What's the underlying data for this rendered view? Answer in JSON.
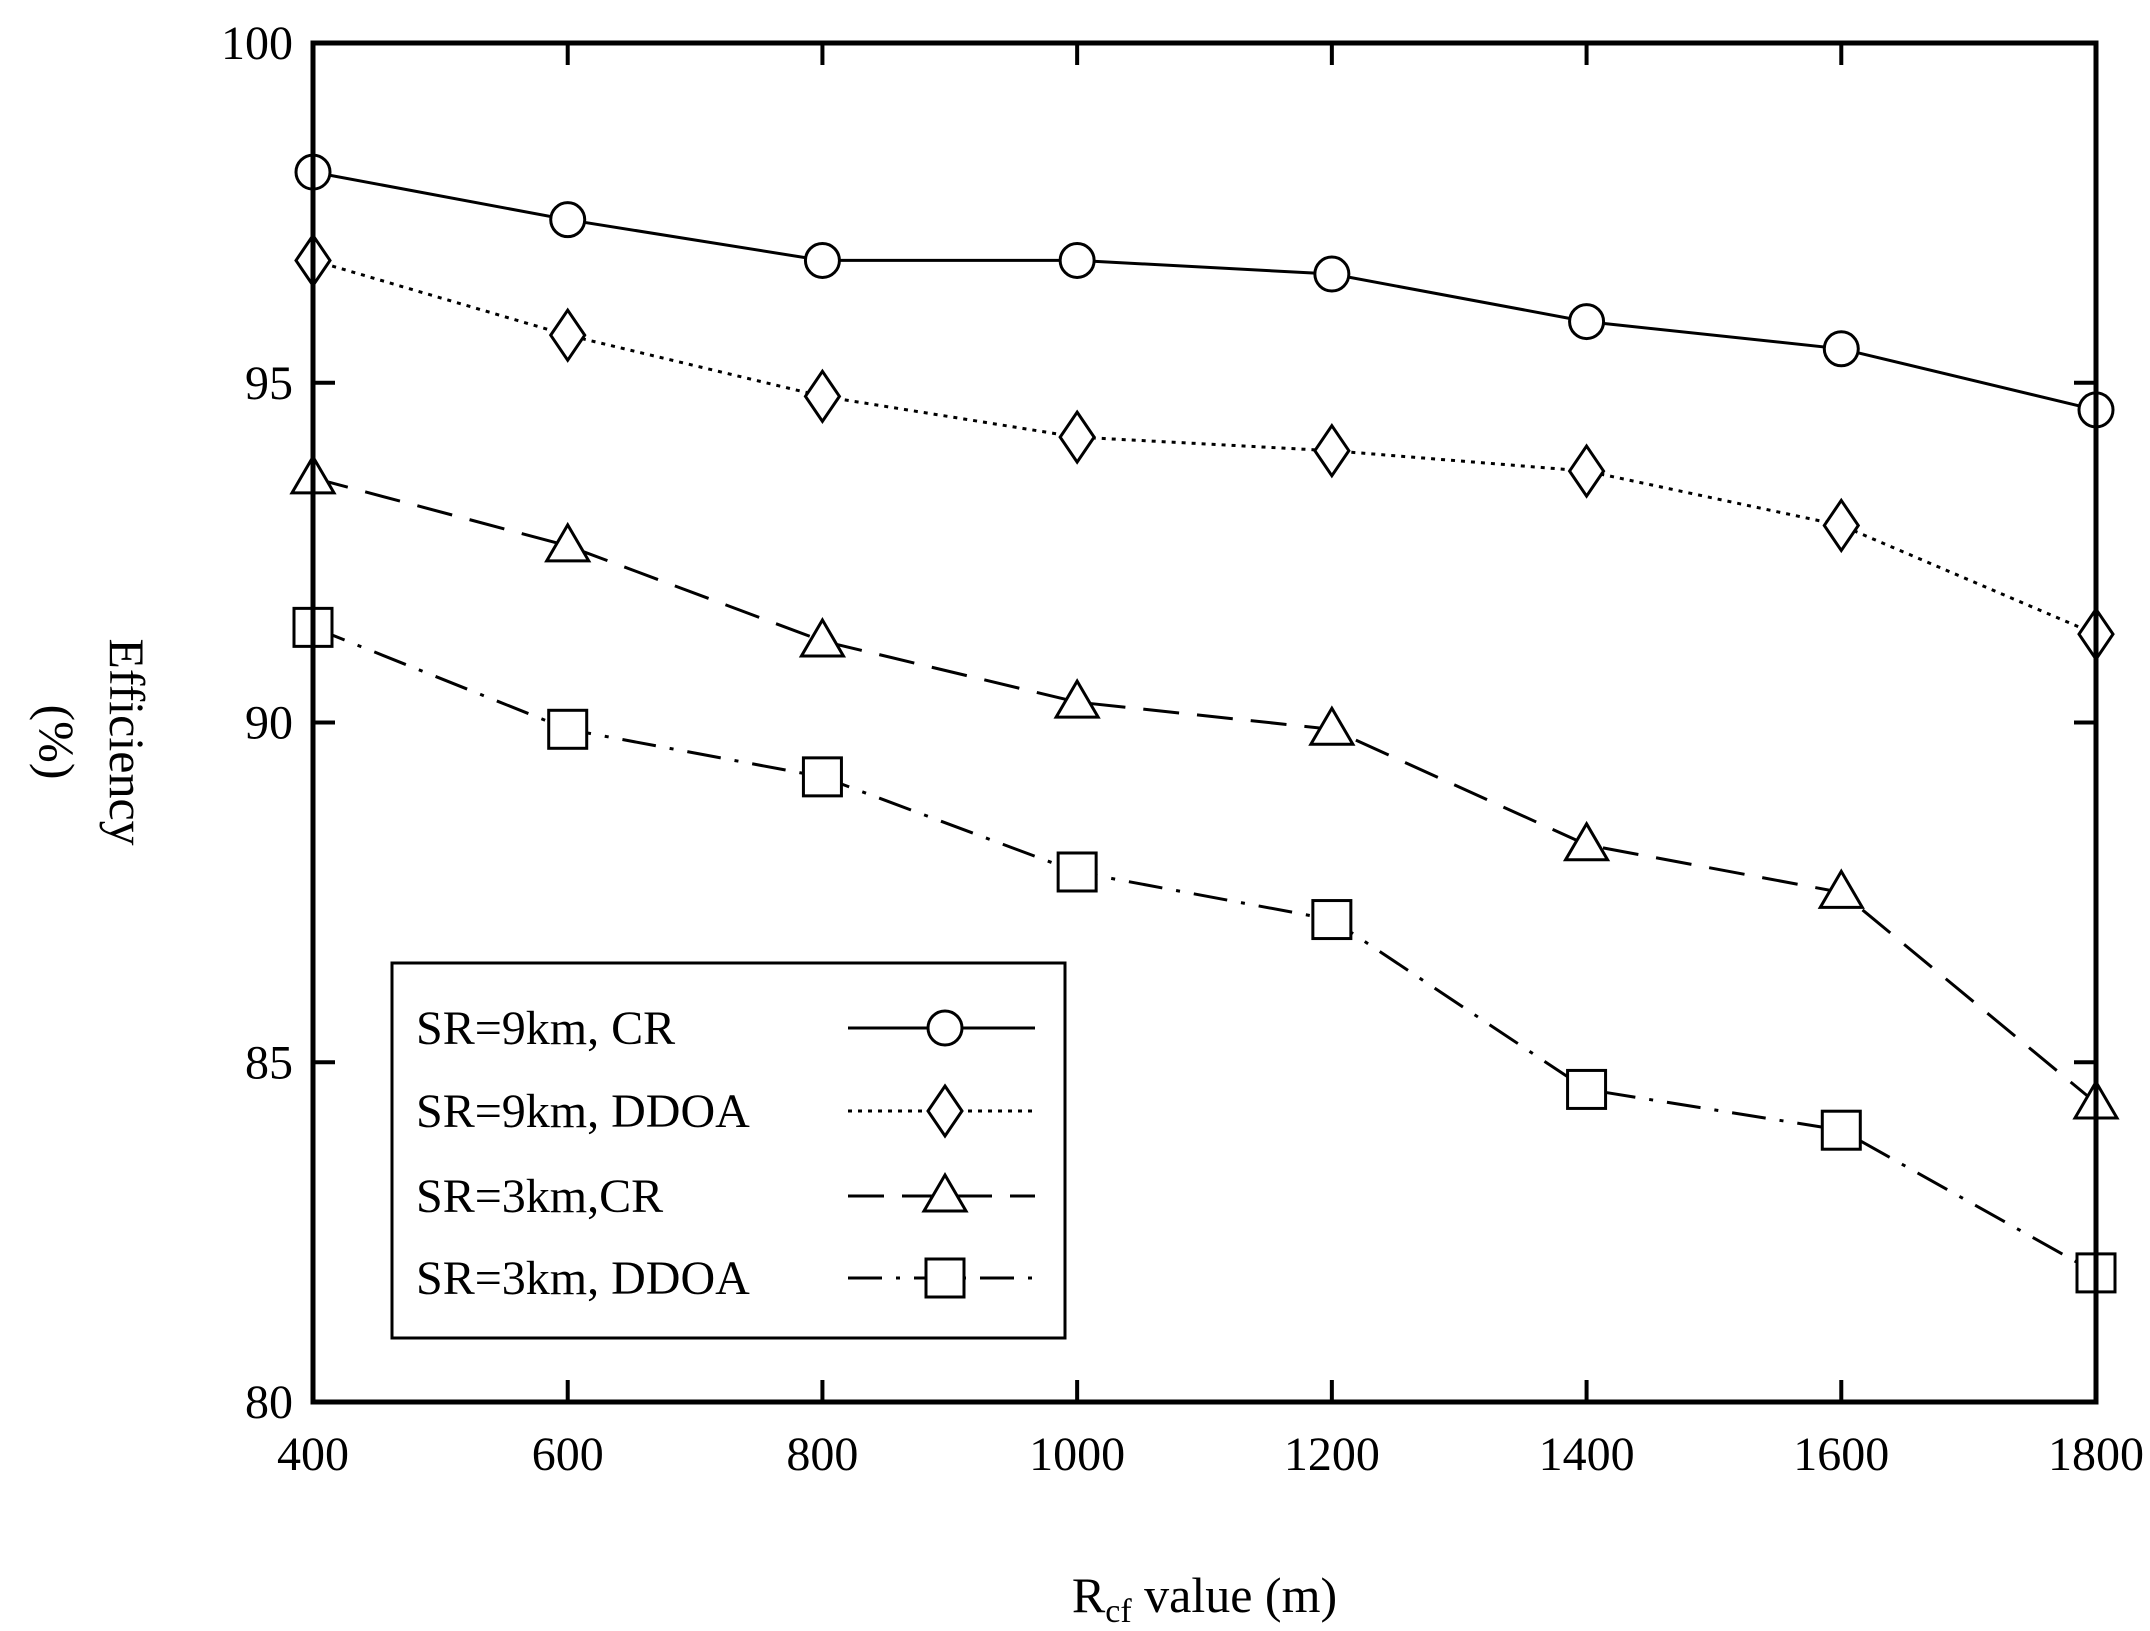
{
  "chart_data": {
    "type": "line",
    "x": [
      400,
      600,
      800,
      1000,
      1200,
      1400,
      1600,
      1800
    ],
    "xlim": [
      400,
      1800
    ],
    "ylim": [
      80,
      100
    ],
    "xticks": [
      "400",
      "600",
      "800",
      "1000",
      "1200",
      "1400",
      "1600",
      "1800"
    ],
    "yticks": [
      "80",
      "85",
      "90",
      "95",
      "100"
    ],
    "xlabel": {
      "main": "R",
      "sub": "cf",
      "rest": " value (m)"
    },
    "ylabel": [
      "Efficiency",
      "(%)"
    ],
    "grid": false,
    "legend_position": "bottom-left",
    "series": [
      {
        "name": "SR=9km, CR",
        "marker": "circle",
        "dash": "solid",
        "values": [
          98.1,
          97.4,
          96.8,
          96.8,
          96.6,
          95.9,
          95.5,
          94.6
        ]
      },
      {
        "name": "SR=9km, DDOA",
        "marker": "diamond",
        "dash": "dotted",
        "values": [
          96.8,
          95.7,
          94.8,
          94.2,
          94.0,
          93.7,
          92.9,
          91.3
        ]
      },
      {
        "name": "SR=3km,CR",
        "marker": "triangle",
        "dash": "dashed",
        "values": [
          93.6,
          92.6,
          91.2,
          90.3,
          89.9,
          88.2,
          87.5,
          84.4
        ]
      },
      {
        "name": "SR=3km, DDOA",
        "marker": "square",
        "dash": "dashdot",
        "values": [
          91.4,
          89.9,
          89.2,
          87.8,
          87.1,
          84.6,
          84.0,
          81.9
        ]
      }
    ],
    "colors": {
      "line": "#000000",
      "background": "#ffffff"
    }
  }
}
